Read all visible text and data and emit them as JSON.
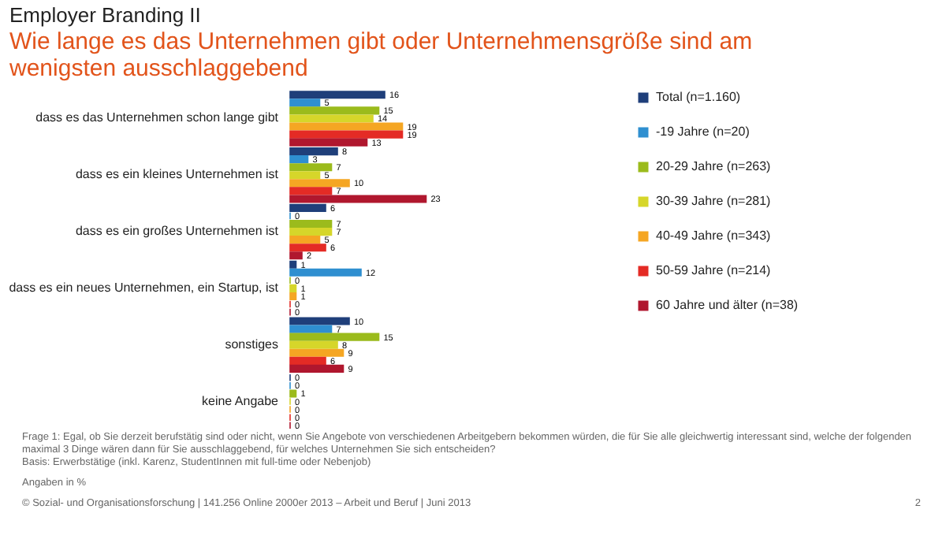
{
  "chart_data": {
    "type": "bar",
    "orientation": "horizontal",
    "title": "Employer Branding II",
    "subtitle": "Wie lange es das Unternehmen gibt oder Unternehmensgröße sind am wenigsten ausschlaggebend",
    "categories": [
      "dass es das Unternehmen schon lange gibt",
      "dass es ein kleines Unternehmen ist",
      "dass es ein großes Unternehmen ist",
      "dass es ein neues Unternehmen, ein Startup, ist",
      "sonstiges",
      "keine Angabe"
    ],
    "series": [
      {
        "name": "Total (n=1.160)",
        "color": "#1f3f7a",
        "values": [
          16,
          8,
          6,
          1,
          10,
          0
        ]
      },
      {
        "name": "-19 Jahre (n=20)",
        "color": "#2f8fd0",
        "values": [
          5,
          3,
          0,
          12,
          7,
          0
        ]
      },
      {
        "name": "20-29 Jahre (n=263)",
        "color": "#9bbb1c",
        "values": [
          15,
          7,
          7,
          0,
          15,
          1
        ]
      },
      {
        "name": "30-39 Jahre (n=281)",
        "color": "#d6d62a",
        "values": [
          14,
          5,
          7,
          1,
          8,
          0
        ]
      },
      {
        "name": "40-49 Jahre (n=343)",
        "color": "#f5a623",
        "values": [
          19,
          10,
          5,
          1,
          9,
          0
        ]
      },
      {
        "name": "50-59 Jahre (n=214)",
        "color": "#e42b25",
        "values": [
          19,
          7,
          6,
          0,
          6,
          0
        ]
      },
      {
        "name": "60 Jahre und älter (n=38)",
        "color": "#b0172e",
        "values": [
          13,
          23,
          2,
          0,
          9,
          0
        ]
      }
    ],
    "data_labels": true,
    "legend": "right",
    "grid": false,
    "annotations": [
      "Frage 1: Egal, ob Sie derzeit berufstätig sind oder nicht, wenn Sie Angebote von verschiedenen Arbeitgebern bekommen würden, die für Sie alle gleichwertig interessant sind, welche der folgenden maximal 3 Dinge wären dann für Sie ausschlaggebend, für welches Unternehmen Sie sich entscheiden?",
      "Basis: Erwerbstätige (inkl. Karenz, StudentInnen mit full-time oder Nebenjob)",
      "Angaben in %",
      "© Sozial- und Organisationsforschung | 141.256 Online 2000er 2013 – Arbeit und Beruf | Juni 2013",
      "2"
    ]
  }
}
